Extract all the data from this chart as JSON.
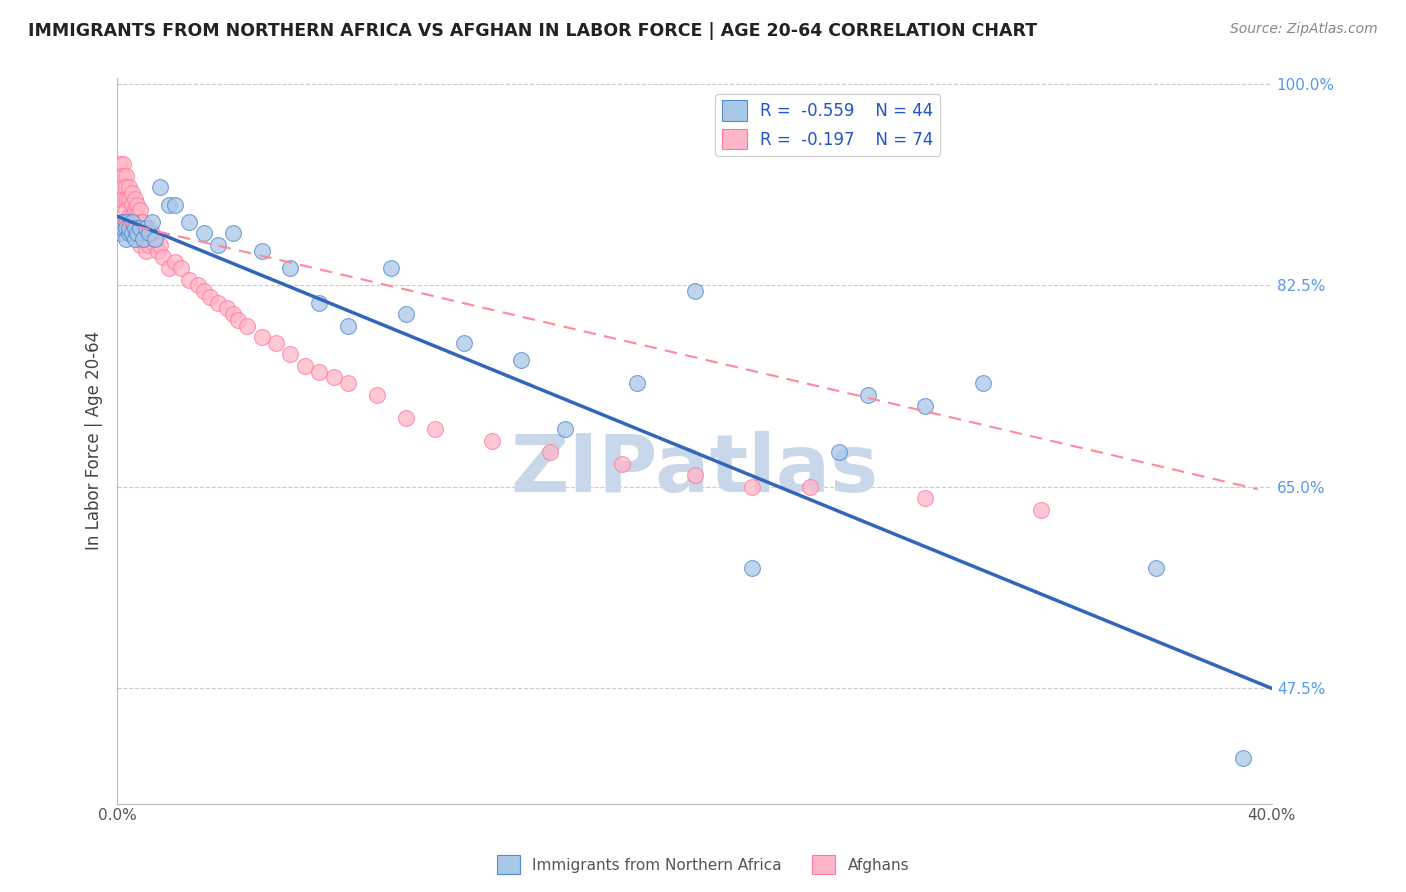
{
  "title": "IMMIGRANTS FROM NORTHERN AFRICA VS AFGHAN IN LABOR FORCE | AGE 20-64 CORRELATION CHART",
  "source": "Source: ZipAtlas.com",
  "ylabel": "In Labor Force | Age 20-64",
  "xlim": [
    0.0,
    0.4
  ],
  "ylim": [
    0.375,
    1.005
  ],
  "xticks": [
    0.0,
    0.05,
    0.1,
    0.15,
    0.2,
    0.25,
    0.3,
    0.35,
    0.4
  ],
  "xticklabels": [
    "0.0%",
    "",
    "",
    "",
    "",
    "",
    "",
    "",
    "40.0%"
  ],
  "yticks_right": [
    1.0,
    0.825,
    0.65,
    0.475
  ],
  "ytick_right_labels": [
    "100.0%",
    "82.5%",
    "65.0%",
    "47.5%"
  ],
  "grid_yticks": [
    1.0,
    0.825,
    0.65,
    0.475
  ],
  "legend_r1": "R = -0.559",
  "legend_n1": "N = 44",
  "legend_r2": "R = -0.197",
  "legend_n2": "N = 74",
  "blue_color": "#A8C8E8",
  "pink_color": "#FFB6C8",
  "blue_edge_color": "#5588CC",
  "pink_edge_color": "#FF7799",
  "blue_line_color": "#3366BB",
  "pink_line_color": "#FF8899",
  "watermark": "ZIPatlas",
  "watermark_color": "#C8D8EA",
  "blue_scatter_x": [
    0.001,
    0.002,
    0.002,
    0.003,
    0.003,
    0.003,
    0.004,
    0.004,
    0.005,
    0.005,
    0.006,
    0.006,
    0.007,
    0.008,
    0.009,
    0.01,
    0.011,
    0.012,
    0.013,
    0.015,
    0.018,
    0.02,
    0.025,
    0.03,
    0.035,
    0.04,
    0.05,
    0.06,
    0.07,
    0.08,
    0.095,
    0.1,
    0.12,
    0.14,
    0.155,
    0.18,
    0.2,
    0.22,
    0.25,
    0.26,
    0.28,
    0.3,
    0.36,
    0.39
  ],
  "blue_scatter_y": [
    0.87,
    0.88,
    0.875,
    0.88,
    0.875,
    0.865,
    0.87,
    0.875,
    0.88,
    0.87,
    0.875,
    0.865,
    0.87,
    0.875,
    0.865,
    0.875,
    0.87,
    0.88,
    0.865,
    0.91,
    0.895,
    0.895,
    0.88,
    0.87,
    0.86,
    0.87,
    0.855,
    0.84,
    0.81,
    0.79,
    0.84,
    0.8,
    0.775,
    0.76,
    0.7,
    0.74,
    0.82,
    0.58,
    0.68,
    0.73,
    0.72,
    0.74,
    0.58,
    0.415
  ],
  "pink_scatter_x": [
    0.001,
    0.001,
    0.001,
    0.002,
    0.002,
    0.002,
    0.002,
    0.003,
    0.003,
    0.003,
    0.003,
    0.003,
    0.004,
    0.004,
    0.004,
    0.005,
    0.005,
    0.005,
    0.005,
    0.005,
    0.006,
    0.006,
    0.006,
    0.006,
    0.007,
    0.007,
    0.007,
    0.007,
    0.008,
    0.008,
    0.008,
    0.008,
    0.009,
    0.009,
    0.01,
    0.01,
    0.01,
    0.011,
    0.011,
    0.012,
    0.013,
    0.014,
    0.015,
    0.016,
    0.018,
    0.02,
    0.022,
    0.025,
    0.028,
    0.03,
    0.032,
    0.035,
    0.038,
    0.04,
    0.042,
    0.045,
    0.05,
    0.055,
    0.06,
    0.065,
    0.07,
    0.075,
    0.08,
    0.09,
    0.1,
    0.11,
    0.13,
    0.15,
    0.175,
    0.2,
    0.22,
    0.24,
    0.28,
    0.32
  ],
  "pink_scatter_y": [
    0.93,
    0.92,
    0.9,
    0.93,
    0.92,
    0.91,
    0.9,
    0.92,
    0.91,
    0.9,
    0.89,
    0.88,
    0.91,
    0.9,
    0.885,
    0.905,
    0.895,
    0.885,
    0.875,
    0.87,
    0.9,
    0.89,
    0.88,
    0.87,
    0.895,
    0.885,
    0.875,
    0.865,
    0.89,
    0.88,
    0.87,
    0.86,
    0.88,
    0.87,
    0.875,
    0.865,
    0.855,
    0.875,
    0.86,
    0.87,
    0.86,
    0.855,
    0.86,
    0.85,
    0.84,
    0.845,
    0.84,
    0.83,
    0.825,
    0.82,
    0.815,
    0.81,
    0.805,
    0.8,
    0.795,
    0.79,
    0.78,
    0.775,
    0.765,
    0.755,
    0.75,
    0.745,
    0.74,
    0.73,
    0.71,
    0.7,
    0.69,
    0.68,
    0.67,
    0.66,
    0.65,
    0.65,
    0.64,
    0.63
  ],
  "blue_trend_x": [
    0.0,
    0.4
  ],
  "blue_trend_y": [
    0.885,
    0.475
  ],
  "pink_trend_x": [
    0.0,
    0.395
  ],
  "pink_trend_y": [
    0.88,
    0.648
  ]
}
